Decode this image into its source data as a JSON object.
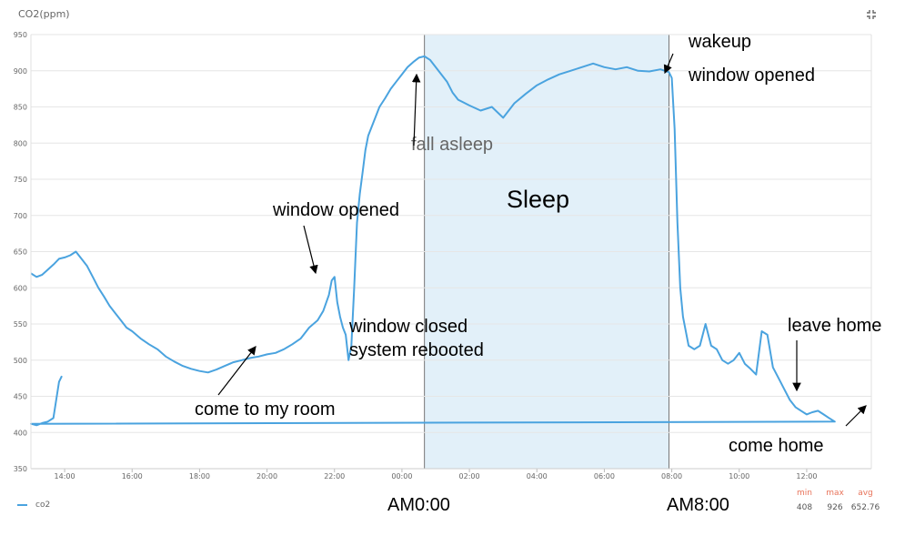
{
  "header": {
    "title": "CO2(ppm)",
    "expand_icon": "collapse-arrows-icon"
  },
  "colors": {
    "series": "#4aa3df",
    "sleep_fill": "#d8ebf7",
    "grid": "#e6e6e6",
    "stat_label": "#e8735a"
  },
  "chart_data": {
    "type": "line",
    "title": "CO2(ppm)",
    "xlabel": "",
    "ylabel": "",
    "ylim": [
      350,
      950
    ],
    "yticks": [
      350,
      400,
      450,
      500,
      550,
      600,
      650,
      700,
      750,
      800,
      850,
      900,
      950
    ],
    "xlim": [
      "13:00",
      "13:55+1"
    ],
    "xticks": [
      "14:00",
      "16:00",
      "18:00",
      "20:00",
      "22:00",
      "00:00",
      "02:00",
      "04:00",
      "06:00",
      "08:00",
      "10:00",
      "12:00"
    ],
    "grid": true,
    "legend": "bottom-left",
    "series": [
      {
        "name": "co2",
        "x": [
          "13:00",
          "13:10",
          "13:20",
          "13:30",
          "13:40",
          "13:50",
          "14:00",
          "14:10",
          "14:20",
          "14:30",
          "14:40",
          "14:50",
          "15:00",
          "15:10",
          "15:20",
          "15:30",
          "15:40",
          "15:50",
          "16:00",
          "16:15",
          "16:30",
          "16:45",
          "17:00",
          "17:15",
          "17:30",
          "17:45",
          "18:00",
          "18:15",
          "18:30",
          "18:45",
          "19:00",
          "19:15",
          "19:30",
          "19:45",
          "20:00",
          "20:15",
          "20:30",
          "20:45",
          "21:00",
          "21:15",
          "21:30",
          "21:40",
          "21:50",
          "21:55",
          "22:00",
          "22:05",
          "22:10",
          "22:15",
          "22:20",
          "22:25",
          "22:30",
          "22:35",
          "22:40",
          "22:45",
          "22:50",
          "22:55",
          "23:00",
          "23:10",
          "23:20",
          "23:30",
          "23:40",
          "23:50",
          "00:00",
          "00:10",
          "00:20",
          "00:30",
          "00:40",
          "00:50",
          "01:00",
          "01:10",
          "01:20",
          "01:30",
          "01:40",
          "02:00",
          "02:20",
          "02:40",
          "03:00",
          "03:20",
          "03:40",
          "04:00",
          "04:20",
          "04:40",
          "05:00",
          "05:20",
          "05:40",
          "06:00",
          "06:20",
          "06:40",
          "07:00",
          "07:20",
          "07:40",
          "07:55",
          "08:00",
          "08:05",
          "08:10",
          "08:15",
          "08:20",
          "08:30",
          "08:40",
          "08:50",
          "09:00",
          "09:10",
          "09:20",
          "09:30",
          "09:40",
          "09:50",
          "10:00",
          "10:10",
          "10:20",
          "10:30",
          "10:40",
          "10:50",
          "11:00",
          "11:10",
          "11:20",
          "11:30",
          "11:40",
          "11:50",
          "12:00",
          "12:10",
          "12:20",
          "12:30",
          "12:40",
          "12:50",
          "13:00",
          "13:10",
          "13:20",
          "13:30",
          "13:40",
          "13:50",
          "13:55"
        ],
        "y": [
          620,
          615,
          618,
          625,
          632,
          640,
          642,
          645,
          650,
          640,
          630,
          615,
          600,
          588,
          575,
          565,
          555,
          545,
          540,
          530,
          522,
          515,
          505,
          498,
          492,
          488,
          485,
          483,
          487,
          492,
          497,
          500,
          503,
          505,
          508,
          510,
          515,
          522,
          530,
          545,
          555,
          568,
          590,
          610,
          615,
          580,
          560,
          545,
          535,
          500,
          520,
          600,
          690,
          730,
          760,
          790,
          810,
          830,
          850,
          862,
          875,
          885,
          895,
          905,
          912,
          918,
          920,
          915,
          905,
          895,
          885,
          870,
          860,
          852,
          845,
          850,
          835,
          855,
          868,
          880,
          888,
          895,
          900,
          905,
          910,
          905,
          902,
          905,
          900,
          899,
          902,
          898,
          890,
          820,
          690,
          600,
          560,
          520,
          515,
          520,
          550,
          520,
          515,
          500,
          495,
          500,
          510,
          495,
          488,
          480,
          540,
          535,
          490,
          475,
          460,
          445,
          435,
          430,
          425,
          428,
          430,
          425,
          420,
          415,
          412,
          410,
          413,
          415,
          420,
          470,
          478
        ]
      }
    ],
    "annotations": [
      {
        "text": "come to my room"
      },
      {
        "text": "window opened"
      },
      {
        "text": "window closed"
      },
      {
        "text": "system rebooted"
      },
      {
        "text": "fall asleep"
      },
      {
        "text": "Sleep"
      },
      {
        "text": "wakeup"
      },
      {
        "text": "window opened"
      },
      {
        "text": "leave home"
      },
      {
        "text": "come home"
      }
    ],
    "shaded_region": {
      "label": "Sleep",
      "x_start": "00:40",
      "x_end": "07:55"
    },
    "bottom_labels": [
      "AM0:00",
      "AM8:00"
    ]
  },
  "legend": {
    "label": "co2"
  },
  "stats": {
    "labels": [
      "min",
      "max",
      "avg"
    ],
    "values": [
      "408",
      "926",
      "652.76"
    ]
  }
}
